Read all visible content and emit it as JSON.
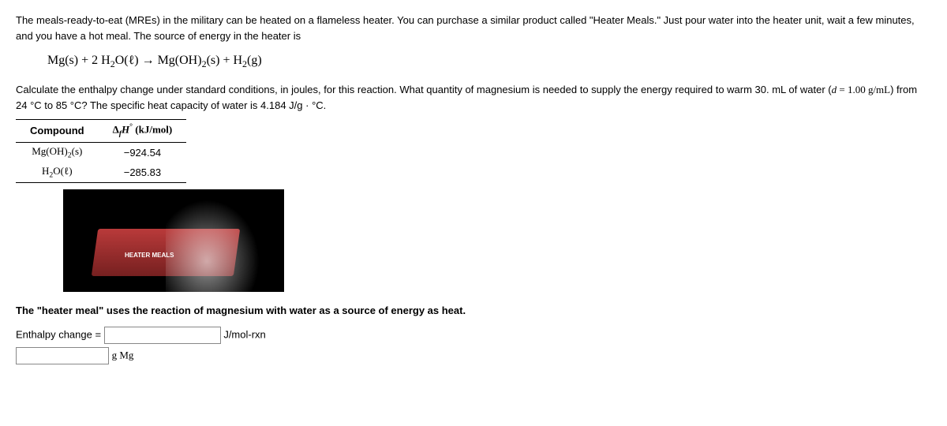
{
  "paragraph1": "The meals-ready-to-eat (MREs) in the military can be heated on a flameless heater. You can purchase a similar product called \"Heater Meals.\" Just pour water into the heater unit, wait a few minutes, and you have a hot meal. The source of energy in the heater is",
  "equation": {
    "lhs_a": "Mg(s)",
    "plus1": " + 2 H",
    "h2o_sub": "2",
    "h2o_rest": "O(ℓ)",
    "arrow": " → ",
    "rhs_a": "Mg(OH)",
    "rhs_a_sub": "2",
    "rhs_a_rest": "(s)",
    "plus2": " + H",
    "h2_sub": "2",
    "h2_rest": "(g)"
  },
  "paragraph2a": "Calculate the enthalpy change under standard conditions, in joules, for this reaction. What quantity of magnesium is needed to supply the energy required to warm 30. mL of water (",
  "density_var": "d",
  "density_eq": " = 1.00 g/mL",
  "paragraph2b": ") from 24 °C to 85 °C? The specific heat capacity of water is 4.184 J/g · °C.",
  "table": {
    "h_compound": "Compound",
    "h_delta_pre": "Δ",
    "h_delta_sub": "f",
    "h_delta_var": "H",
    "h_delta_sup": "°",
    "h_delta_unit": " (kJ/mol)",
    "rows": [
      {
        "compound_a": "Mg(OH)",
        "compound_sub": "2",
        "compound_rest": "(s)",
        "value": "−924.54"
      },
      {
        "compound_a": "H",
        "compound_sub": "2",
        "compound_rest": "O(ℓ)",
        "value": "−285.83"
      }
    ]
  },
  "img_box_label": "HEATER MEALS",
  "caption": "The \"heater meal\" uses the reaction of magnesium with water as a source of energy as heat.",
  "answers": {
    "enthalpy_label": "Enthalpy change =",
    "enthalpy_unit": "J/mol-rxn",
    "mass_unit": "g Mg"
  }
}
